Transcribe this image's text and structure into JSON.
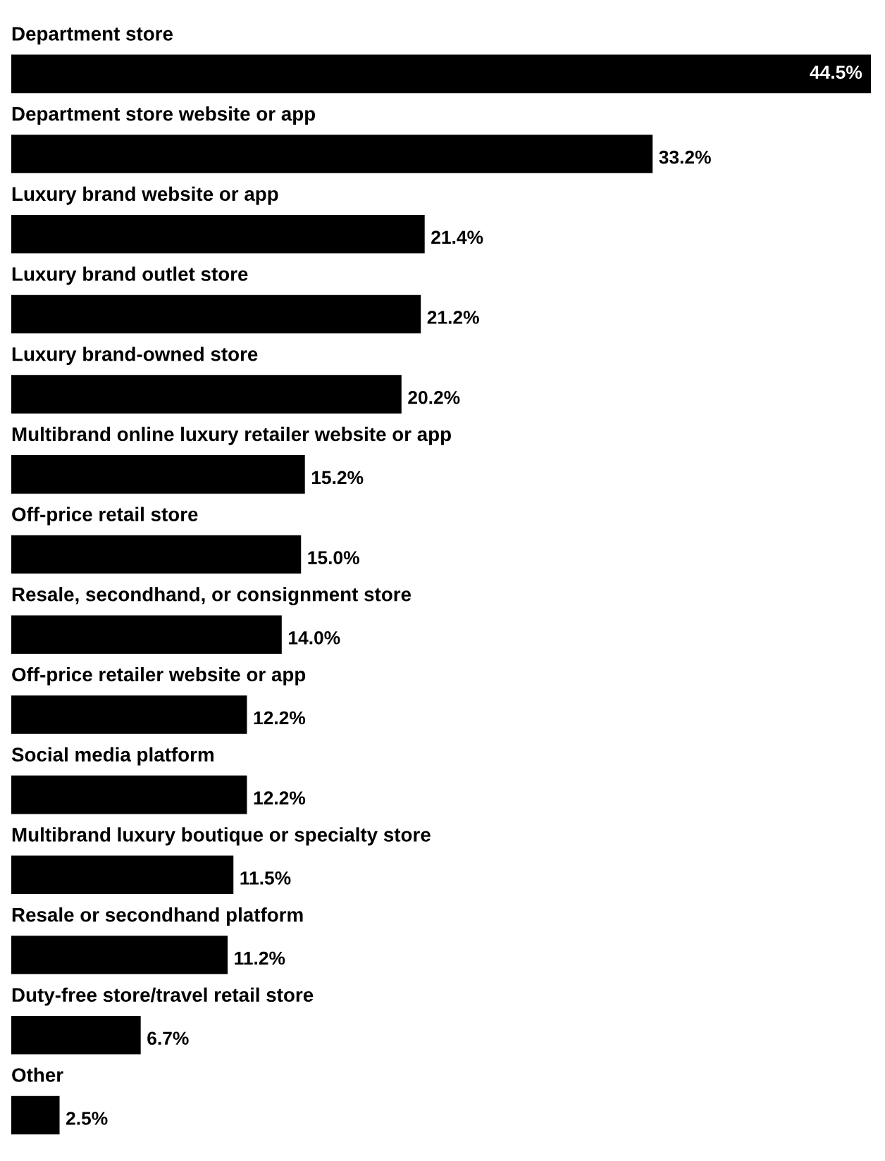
{
  "chart_data": {
    "type": "bar",
    "orientation": "horizontal",
    "color": "#000000",
    "data_labels": true,
    "categories": [
      "Department store",
      "Department store website or app",
      "Luxury brand website or app",
      "Luxury brand outlet store",
      "Luxury brand-owned store",
      "Multibrand online luxury retailer website or app",
      "Off-price retail store",
      "Resale, secondhand, or consignment store",
      "Off-price retailer website or app",
      "Social media platform",
      "Multibrand luxury boutique or specialty store",
      "Resale or secondhand platform",
      "Duty-free store/travel retail store",
      "Other"
    ],
    "values": [
      44.5,
      33.2,
      21.4,
      21.2,
      20.2,
      15.2,
      15.0,
      14.0,
      12.2,
      12.2,
      11.5,
      11.2,
      6.7,
      2.5
    ],
    "value_labels": [
      "44.5%",
      "33.2%",
      "21.4%",
      "21.2%",
      "20.2%",
      "15.2%",
      "15.0%",
      "14.0%",
      "12.2%",
      "12.2%",
      "11.5%",
      "11.2%",
      "6.7%",
      "2.5%"
    ]
  }
}
